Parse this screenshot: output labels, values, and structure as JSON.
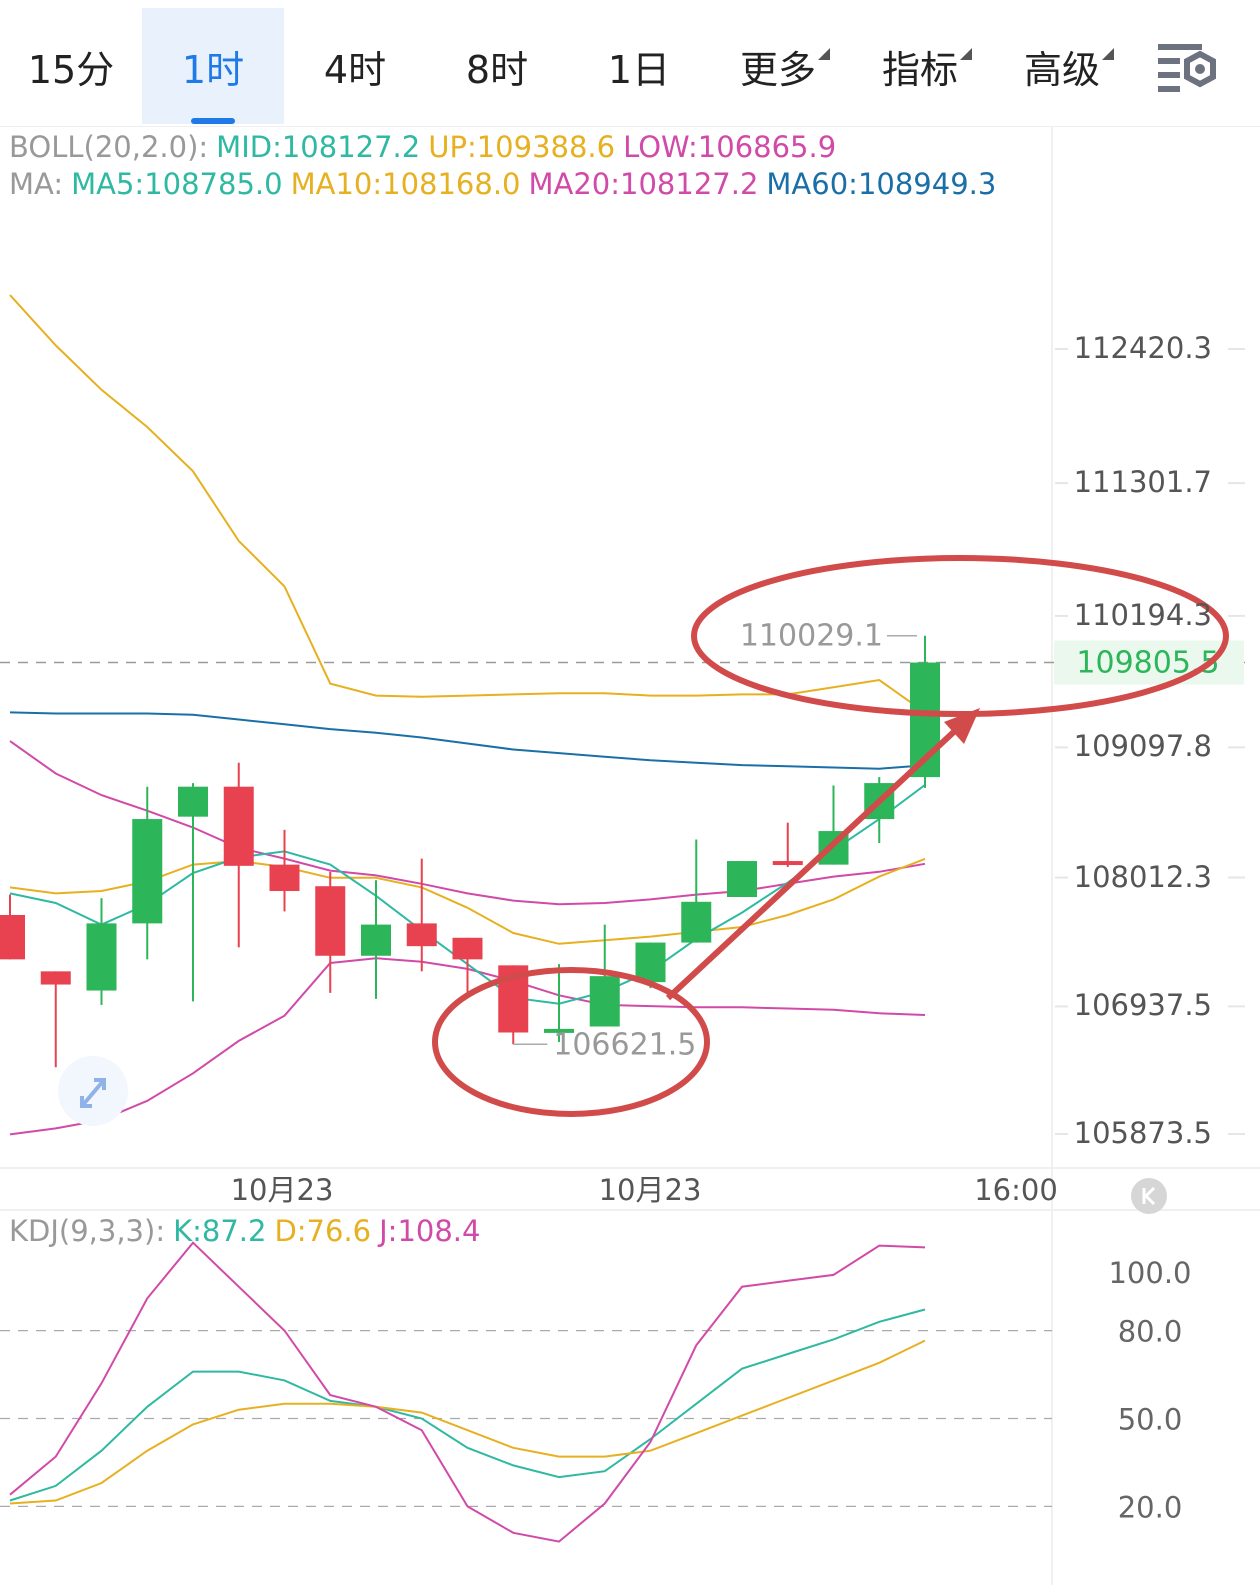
{
  "tabs": [
    {
      "label": "15分",
      "active": false,
      "dropdown": false
    },
    {
      "label": "1时",
      "active": true,
      "dropdown": false
    },
    {
      "label": "4时",
      "active": false,
      "dropdown": false
    },
    {
      "label": "8时",
      "active": false,
      "dropdown": false
    },
    {
      "label": "1日",
      "active": false,
      "dropdown": false
    },
    {
      "label": "更多",
      "active": false,
      "dropdown": true
    },
    {
      "label": "指标",
      "active": false,
      "dropdown": true
    },
    {
      "label": "高级",
      "active": false,
      "dropdown": true
    }
  ],
  "settings_icon": "settings-icon",
  "boll_legend": {
    "prefix": "BOLL(20,2.0):",
    "mid": "MID:108127.2",
    "up": "UP:109388.6",
    "low": "LOW:106865.9"
  },
  "ma_legend": {
    "prefix": "MA:",
    "ma5": "MA5:108785.0",
    "ma10": "MA10:108168.0",
    "ma20": "MA20:108127.2",
    "ma60": "MA60:108949.3"
  },
  "kdj_legend": {
    "prefix": "KDJ(9,3,3):",
    "k": "K:87.2",
    "d": "D:76.6",
    "j": "J:108.4"
  },
  "colors": {
    "up": "#2db559",
    "down": "#e8414f",
    "ma5": "#2fb9a2",
    "ma10": "#e6b020",
    "ma20": "#d14aa8",
    "ma60": "#1a6fa8",
    "annotation": "#d14b4b"
  },
  "chart_data": [
    {
      "type": "candlestick",
      "title": "",
      "price_axis_ticks": [
        "112420.3",
        "111301.7",
        "110194.3",
        "109097.8",
        "108012.3",
        "106937.5",
        "105873.5"
      ],
      "current_price": "109805.5",
      "high_marker": "110029.1",
      "low_marker": "106621.5",
      "x_tick_labels": [
        "10月23",
        "10月23",
        "16:00"
      ],
      "candles": [
        {
          "open": 107700,
          "close": 107330,
          "high": 107870,
          "low": 107330
        },
        {
          "open": 107230,
          "close": 107120,
          "high": 107230,
          "low": 106430
        },
        {
          "open": 107070,
          "close": 107630,
          "high": 107840,
          "low": 106950
        },
        {
          "open": 107630,
          "close": 108500,
          "high": 108770,
          "low": 107330
        },
        {
          "open": 108520,
          "close": 108770,
          "high": 108800,
          "low": 106980
        },
        {
          "open": 108770,
          "close": 108110,
          "high": 108970,
          "low": 107430
        },
        {
          "open": 108120,
          "close": 107900,
          "high": 108410,
          "low": 107730
        },
        {
          "open": 107940,
          "close": 107360,
          "high": 108060,
          "low": 107050
        },
        {
          "open": 107360,
          "close": 107620,
          "high": 107990,
          "low": 107000
        },
        {
          "open": 107630,
          "close": 107440,
          "high": 108170,
          "low": 107230
        },
        {
          "open": 107510,
          "close": 107330,
          "high": 107510,
          "low": 107050
        },
        {
          "open": 107280,
          "close": 106720,
          "high": 107280,
          "low": 106621.5
        },
        {
          "open": 106740,
          "close": 106750,
          "high": 107290,
          "low": 106640
        },
        {
          "open": 106770,
          "close": 107190,
          "high": 107620,
          "low": 106770
        },
        {
          "open": 107140,
          "close": 107470,
          "high": 107470,
          "low": 107090
        },
        {
          "open": 107470,
          "close": 107810,
          "high": 108330,
          "low": 107470
        },
        {
          "open": 107850,
          "close": 108150,
          "high": 108150,
          "low": 107880
        },
        {
          "open": 108150,
          "close": 108120,
          "high": 108470,
          "low": 108100
        },
        {
          "open": 108120,
          "close": 108400,
          "high": 108780,
          "low": 108120
        },
        {
          "open": 108500,
          "close": 108800,
          "high": 108850,
          "low": 108300
        },
        {
          "open": 108850,
          "close": 109805.5,
          "high": 110029.1,
          "low": 108760
        }
      ],
      "ma5": [
        107880,
        107800,
        107620,
        107790,
        108050,
        108180,
        108230,
        108120,
        107860,
        107570,
        107290,
        107010,
        106960,
        107060,
        107230,
        107500,
        107720,
        107970,
        108240,
        108500,
        108785
      ],
      "ma10": [
        107930,
        107880,
        107900,
        107980,
        108120,
        108150,
        108100,
        108010,
        108010,
        107930,
        107760,
        107550,
        107460,
        107490,
        107520,
        107560,
        107600,
        107700,
        107830,
        108020,
        108168
      ],
      "ma20": [
        109150,
        108880,
        108700,
        108570,
        108430,
        108260,
        108170,
        108070,
        108030,
        107960,
        107880,
        107820,
        107790,
        107800,
        107830,
        107870,
        107900,
        107960,
        108020,
        108060,
        108127.2
      ],
      "ma60": [
        109390,
        109380,
        109380,
        109380,
        109370,
        109330,
        109290,
        109250,
        109220,
        109180,
        109130,
        109080,
        109050,
        109020,
        108990,
        108970,
        108950,
        108940,
        108930,
        108920,
        108949.3
      ],
      "boll_up": [
        112870,
        112450,
        112080,
        111770,
        111400,
        110820,
        110440,
        109630,
        109530,
        109520,
        109530,
        109540,
        109550,
        109550,
        109530,
        109530,
        109540,
        109540,
        109600,
        109660,
        109388.6
      ],
      "boll_low": [
        105870,
        105920,
        105990,
        106150,
        106380,
        106650,
        106860,
        107300,
        107340,
        107310,
        107250,
        107150,
        107030,
        106950,
        106940,
        106930,
        106930,
        106920,
        106910,
        106880,
        106865.9
      ]
    },
    {
      "type": "line",
      "title": "KDJ(9,3,3)",
      "y_ticks": [
        "100.0",
        "80.0",
        "50.0",
        "20.0"
      ],
      "ylim": [
        12,
        112
      ],
      "series": [
        {
          "name": "K",
          "color": "#2fb9a2",
          "values": [
            22,
            27,
            39,
            54,
            66,
            66,
            63,
            56,
            54,
            50,
            40,
            34,
            30,
            32,
            43,
            55,
            67,
            72,
            77,
            83,
            87.2
          ]
        },
        {
          "name": "D",
          "color": "#e6b020",
          "values": [
            21,
            22,
            28,
            39,
            48,
            53,
            55,
            55,
            54,
            52,
            46,
            40,
            37,
            37,
            39,
            45,
            51,
            57,
            63,
            69,
            76.6
          ]
        },
        {
          "name": "J",
          "color": "#d14aa8",
          "values": [
            24,
            37,
            62,
            91,
            110,
            95,
            80,
            58,
            54,
            46,
            20,
            11,
            8,
            21,
            42,
            75,
            95,
            97,
            99,
            109,
            108.4
          ]
        }
      ]
    }
  ]
}
